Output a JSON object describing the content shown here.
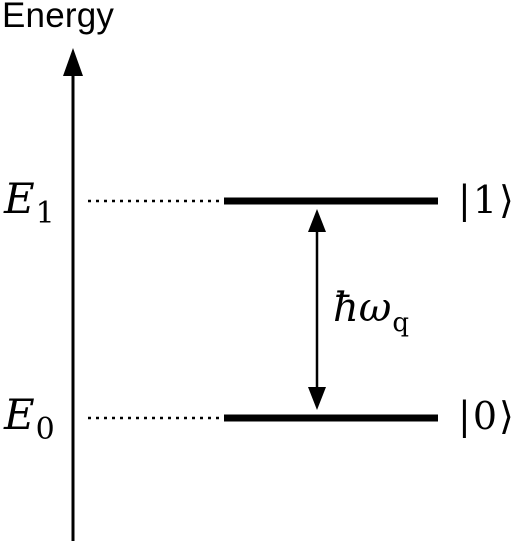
{
  "axis": {
    "title": "Energy"
  },
  "levels": [
    {
      "symbol": "E",
      "subscript": "1",
      "state": "1"
    },
    {
      "symbol": "E",
      "subscript": "0",
      "state": "0"
    }
  ],
  "transition": {
    "hbar": "ħ",
    "omega": "ω",
    "subscript": "q"
  },
  "colors": {
    "ink": "#000000",
    "background": "#ffffff"
  }
}
